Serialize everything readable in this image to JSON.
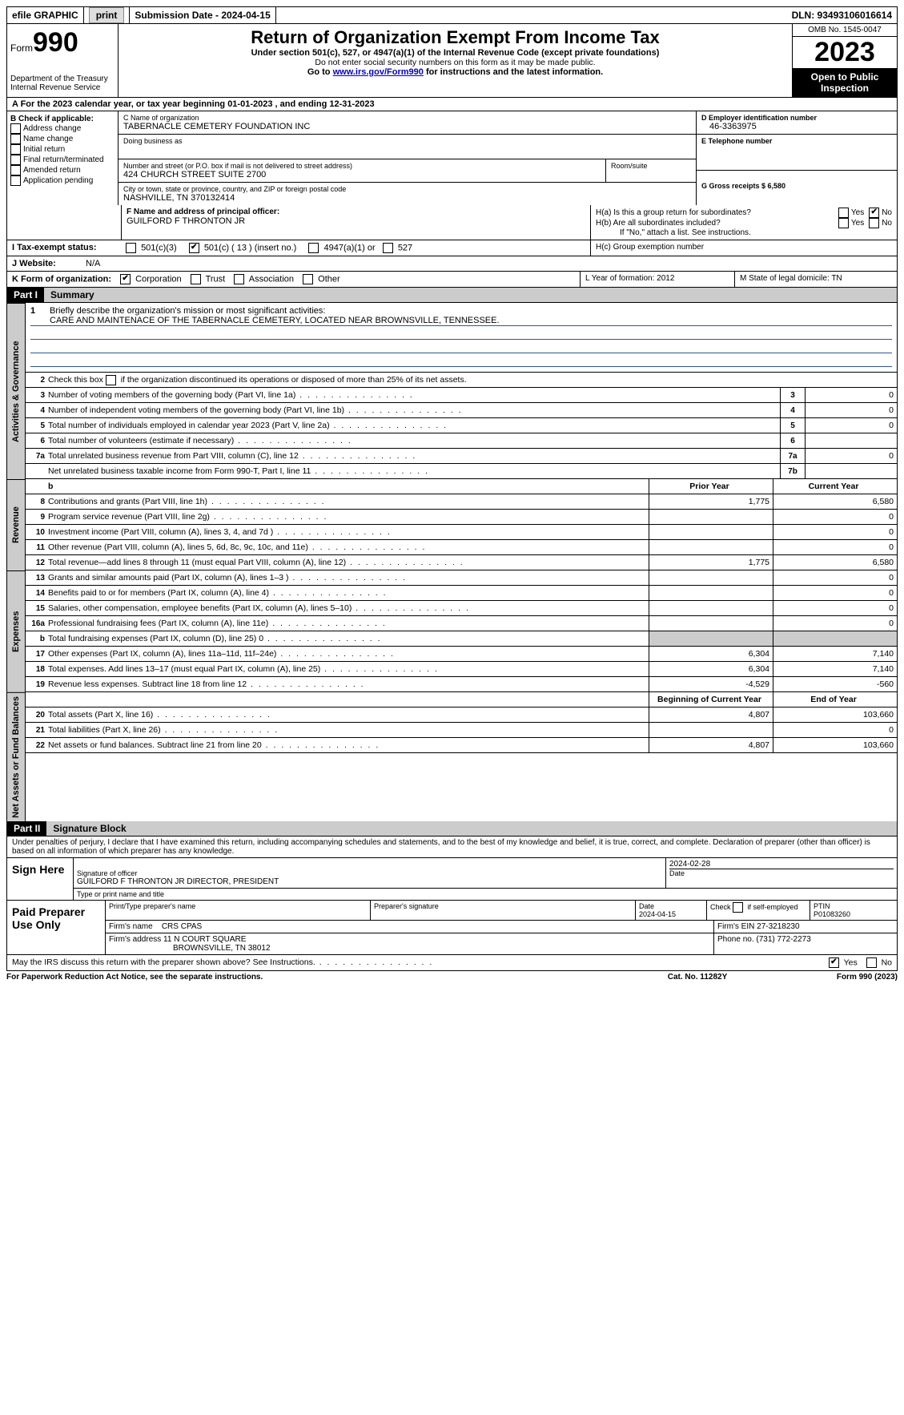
{
  "topbar": {
    "efile": "efile GRAPHIC",
    "print": "print",
    "submission": "Submission Date - 2024-04-15",
    "dln": "DLN: 93493106016614"
  },
  "header": {
    "form_prefix": "Form",
    "form_num": "990",
    "dept": "Department of the Treasury",
    "irs": "Internal Revenue Service",
    "title": "Return of Organization Exempt From Income Tax",
    "sub1": "Under section 501(c), 527, or 4947(a)(1) of the Internal Revenue Code (except private foundations)",
    "sub2": "Do not enter social security numbers on this form as it may be made public.",
    "sub3_pre": "Go to ",
    "sub3_link": "www.irs.gov/Form990",
    "sub3_post": " for instructions and the latest information.",
    "omb": "OMB No. 1545-0047",
    "year": "2023",
    "open_pub": "Open to Public Inspection"
  },
  "row_a": "A For the 2023 calendar year, or tax year beginning 01-01-2023   , and ending 12-31-2023",
  "box_b": {
    "label": "B Check if applicable:",
    "items": [
      "Address change",
      "Name change",
      "Initial return",
      "Final return/terminated",
      "Amended return",
      "Application pending"
    ]
  },
  "box_c": {
    "name_label": "C Name of organization",
    "name": "TABERNACLE CEMETERY FOUNDATION INC",
    "dba_label": "Doing business as",
    "addr_label": "Number and street (or P.O. box if mail is not delivered to street address)",
    "addr": "424 CHURCH STREET SUITE 2700",
    "room_label": "Room/suite",
    "city_label": "City or town, state or province, country, and ZIP or foreign postal code",
    "city": "NASHVILLE, TN  370132414"
  },
  "box_d": {
    "ein_label": "D Employer identification number",
    "ein": "46-3363975",
    "tel_label": "E Telephone number",
    "gross_label": "G Gross receipts $ 6,580"
  },
  "box_f": {
    "label": "F  Name and address of principal officer:",
    "name": "GUILFORD F THRONTON JR"
  },
  "box_h": {
    "ha": "H(a)  Is this a group return for subordinates?",
    "hb": "H(b)  Are all subordinates included?",
    "hb_note": "If \"No,\" attach a list. See instructions.",
    "hc": "H(c)  Group exemption number",
    "yes": "Yes",
    "no": "No"
  },
  "row_i": {
    "label": "I   Tax-exempt status:",
    "opts": [
      "501(c)(3)",
      "501(c) ( 13 ) (insert no.)",
      "4947(a)(1) or",
      "527"
    ]
  },
  "row_j": {
    "label": "J   Website:",
    "val": "N/A"
  },
  "row_k": {
    "label": "K Form of organization:",
    "opts": [
      "Corporation",
      "Trust",
      "Association",
      "Other"
    ]
  },
  "row_l": "L Year of formation: 2012",
  "row_m": "M State of legal domicile: TN",
  "part1": {
    "hdr": "Part I",
    "title": "Summary",
    "tab_gov": "Activities & Governance",
    "tab_rev": "Revenue",
    "tab_exp": "Expenses",
    "tab_net": "Net Assets or Fund Balances",
    "l1_label": "Briefly describe the organization's mission or most significant activities:",
    "l1_val": "CARE AND MAINTENACE OF THE TABERNACLE CEMETERY, LOCATED NEAR BROWNSVILLE, TENNESSEE.",
    "l2": "Check this box      if the organization discontinued its operations or disposed of more than 25% of its net assets.",
    "lines_gov": [
      {
        "n": "3",
        "t": "Number of voting members of the governing body (Part VI, line 1a)",
        "box": "3",
        "v": "0"
      },
      {
        "n": "4",
        "t": "Number of independent voting members of the governing body (Part VI, line 1b)",
        "box": "4",
        "v": "0"
      },
      {
        "n": "5",
        "t": "Total number of individuals employed in calendar year 2023 (Part V, line 2a)",
        "box": "5",
        "v": "0"
      },
      {
        "n": "6",
        "t": "Total number of volunteers (estimate if necessary)",
        "box": "6",
        "v": ""
      },
      {
        "n": "7a",
        "t": "Total unrelated business revenue from Part VIII, column (C), line 12",
        "box": "7a",
        "v": "0"
      },
      {
        "n": "",
        "t": "Net unrelated business taxable income from Form 990-T, Part I, line 11",
        "box": "7b",
        "v": ""
      }
    ],
    "col_prior": "Prior Year",
    "col_curr": "Current Year",
    "col_beg": "Beginning of Current Year",
    "col_end": "End of Year",
    "lines_rev": [
      {
        "n": "8",
        "t": "Contributions and grants (Part VIII, line 1h)",
        "p": "1,775",
        "c": "6,580"
      },
      {
        "n": "9",
        "t": "Program service revenue (Part VIII, line 2g)",
        "p": "",
        "c": "0"
      },
      {
        "n": "10",
        "t": "Investment income (Part VIII, column (A), lines 3, 4, and 7d )",
        "p": "",
        "c": "0"
      },
      {
        "n": "11",
        "t": "Other revenue (Part VIII, column (A), lines 5, 6d, 8c, 9c, 10c, and 11e)",
        "p": "",
        "c": "0"
      },
      {
        "n": "12",
        "t": "Total revenue—add lines 8 through 11 (must equal Part VIII, column (A), line 12)",
        "p": "1,775",
        "c": "6,580"
      }
    ],
    "lines_exp": [
      {
        "n": "13",
        "t": "Grants and similar amounts paid (Part IX, column (A), lines 1–3 )",
        "p": "",
        "c": "0"
      },
      {
        "n": "14",
        "t": "Benefits paid to or for members (Part IX, column (A), line 4)",
        "p": "",
        "c": "0"
      },
      {
        "n": "15",
        "t": "Salaries, other compensation, employee benefits (Part IX, column (A), lines 5–10)",
        "p": "",
        "c": "0"
      },
      {
        "n": "16a",
        "t": "Professional fundraising fees (Part IX, column (A), line 11e)",
        "p": "",
        "c": "0"
      },
      {
        "n": "b",
        "t": "Total fundraising expenses (Part IX, column (D), line 25) 0",
        "p": "SHADE",
        "c": "SHADE"
      },
      {
        "n": "17",
        "t": "Other expenses (Part IX, column (A), lines 11a–11d, 11f–24e)",
        "p": "6,304",
        "c": "7,140"
      },
      {
        "n": "18",
        "t": "Total expenses. Add lines 13–17 (must equal Part IX, column (A), line 25)",
        "p": "6,304",
        "c": "7,140"
      },
      {
        "n": "19",
        "t": "Revenue less expenses. Subtract line 18 from line 12",
        "p": "-4,529",
        "c": "-560"
      }
    ],
    "lines_net": [
      {
        "n": "20",
        "t": "Total assets (Part X, line 16)",
        "p": "4,807",
        "c": "103,660"
      },
      {
        "n": "21",
        "t": "Total liabilities (Part X, line 26)",
        "p": "",
        "c": "0"
      },
      {
        "n": "22",
        "t": "Net assets or fund balances. Subtract line 21 from line 20",
        "p": "4,807",
        "c": "103,660"
      }
    ]
  },
  "part2": {
    "hdr": "Part II",
    "title": "Signature Block",
    "decl": "Under penalties of perjury, I declare that I have examined this return, including accompanying schedules and statements, and to the best of my knowledge and belief, it is true, correct, and complete. Declaration of preparer (other than officer) is based on all information of which preparer has any knowledge.",
    "sign_here": "Sign Here",
    "sig_date": "2024-02-28",
    "sig_label": "Signature of officer",
    "officer": "GUILFORD F THRONTON JR  DIRECTOR, PRESIDENT",
    "type_label": "Type or print name and title",
    "date_label": "Date",
    "paid": "Paid Preparer Use Only",
    "prep_name_label": "Print/Type preparer's name",
    "prep_sig_label": "Preparer's signature",
    "prep_date": "2024-04-15",
    "self_emp": "Check       if self-employed",
    "ptin_label": "PTIN",
    "ptin": "P01083260",
    "firm_name_label": "Firm's name",
    "firm_name": "CRS CPAS",
    "firm_ein_label": "Firm's EIN",
    "firm_ein": "27-3218230",
    "firm_addr_label": "Firm's address",
    "firm_addr1": "11 N COURT SQUARE",
    "firm_addr2": "BROWNSVILLE, TN  38012",
    "phone_label": "Phone no.",
    "phone": "(731) 772-2273",
    "discuss": "May the IRS discuss this return with the preparer shown above? See Instructions.",
    "yes": "Yes",
    "no": "No"
  },
  "footer": {
    "left": "For Paperwork Reduction Act Notice, see the separate instructions.",
    "mid": "Cat. No. 11282Y",
    "right": "Form 990 (2023)"
  }
}
